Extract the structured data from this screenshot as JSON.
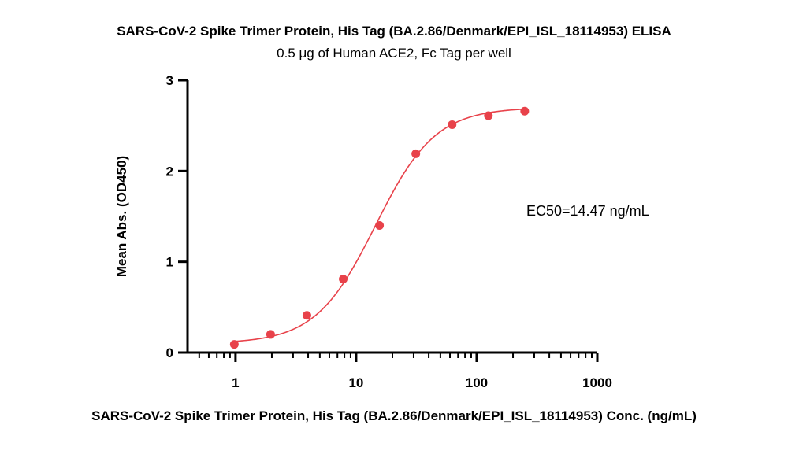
{
  "chart_data": {
    "type": "scatter",
    "title": "SARS-CoV-2 Spike Trimer Protein, His Tag (BA.2.86/Denmark/EPI_ISL_18114953) ELISA",
    "subtitle": "0.5 μg of Human ACE2, Fc Tag per well",
    "xlabel": "SARS-CoV-2 Spike Trimer Protein, His Tag (BA.2.86/Denmark/EPI_ISL_18114953) Conc. (ng/mL)",
    "ylabel": "Mean Abs. (OD450)",
    "x_scale": "log",
    "xlim": [
      0.4,
      1000
    ],
    "ylim": [
      0,
      3
    ],
    "x_ticks": [
      "1",
      "10",
      "100",
      "1000"
    ],
    "y_ticks": [
      "0",
      "1",
      "2",
      "3"
    ],
    "grid": false,
    "annotation": "EC50=14.47 ng/mL",
    "color": "#e8424a",
    "series": [
      {
        "x": [
          0.977,
          1.953,
          3.906,
          7.813,
          15.625,
          31.25,
          62.5,
          125,
          250
        ],
        "y": [
          0.09,
          0.2,
          0.41,
          0.81,
          1.4,
          2.19,
          2.51,
          2.61,
          2.66
        ],
        "fit": "4PL",
        "fit_params": {
          "bottom": 0.1,
          "top": 2.7,
          "ec50": 14.47,
          "hill": 1.75
        }
      }
    ]
  }
}
